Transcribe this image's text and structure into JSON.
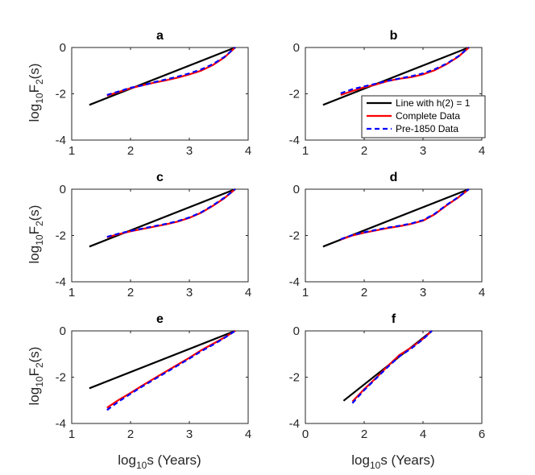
{
  "chart_data": {
    "type": "line",
    "legend": {
      "location": "panel b, bottom-right",
      "entries": [
        {
          "label": "Line with h(2) = 1",
          "color": "#000000",
          "style": "solid"
        },
        {
          "label": "Complete Data",
          "color": "#ff0000",
          "style": "solid"
        },
        {
          "label": "Pre-1850 Data",
          "color": "#0000ff",
          "style": "dashed"
        }
      ]
    },
    "ylabel": {
      "base": "log",
      "sub": "10",
      "rest": "F",
      "sub2": "2",
      "tail": "(s)"
    },
    "xlabel": {
      "base": "log",
      "sub": "10",
      "tail": "s (Years)"
    },
    "panels": [
      {
        "title": "a",
        "xlim": [
          1,
          4
        ],
        "ylim": [
          -4,
          0
        ],
        "xticks": [
          "1",
          "2",
          "3",
          "4"
        ],
        "yticks": [
          "0",
          "-2",
          "-4"
        ],
        "series": [
          {
            "name": "Line with h(2) = 1",
            "x": [
              1.3,
              3.78
            ],
            "y": [
              -2.48,
              0
            ]
          },
          {
            "name": "Complete Data",
            "x": [
              1.6,
              1.8,
              2.0,
              2.2,
              2.4,
              2.6,
              2.8,
              3.0,
              3.2,
              3.4,
              3.6,
              3.78
            ],
            "y": [
              -2.08,
              -1.92,
              -1.76,
              -1.64,
              -1.52,
              -1.42,
              -1.3,
              -1.16,
              -1.0,
              -0.76,
              -0.42,
              0
            ]
          },
          {
            "name": "Pre-1850 Data",
            "x": [
              1.6,
              1.8,
              2.0,
              2.2,
              2.4,
              2.6,
              2.8,
              3.0,
              3.2,
              3.4,
              3.6,
              3.78
            ],
            "y": [
              -2.05,
              -1.9,
              -1.74,
              -1.64,
              -1.5,
              -1.38,
              -1.26,
              -1.12,
              -0.95,
              -0.72,
              -0.4,
              0
            ]
          }
        ]
      },
      {
        "title": "b",
        "xlim": [
          1,
          4
        ],
        "ylim": [
          -4,
          0
        ],
        "xticks": [
          "1",
          "2",
          "3",
          "4"
        ],
        "yticks": [
          "0",
          "-2",
          "-4"
        ],
        "series": [
          {
            "name": "Line with h(2) = 1",
            "x": [
              1.3,
              3.78
            ],
            "y": [
              -2.48,
              0
            ]
          },
          {
            "name": "Complete Data",
            "x": [
              1.6,
              1.8,
              2.0,
              2.2,
              2.4,
              2.6,
              2.8,
              3.0,
              3.2,
              3.4,
              3.6,
              3.78
            ],
            "y": [
              -2.05,
              -1.88,
              -1.72,
              -1.6,
              -1.45,
              -1.35,
              -1.28,
              -1.16,
              -0.98,
              -0.72,
              -0.4,
              0
            ]
          },
          {
            "name": "Pre-1850 Data",
            "x": [
              1.6,
              1.8,
              2.0,
              2.2,
              2.4,
              2.6,
              2.8,
              3.0,
              3.2,
              3.4,
              3.6,
              3.78
            ],
            "y": [
              -1.98,
              -1.8,
              -1.68,
              -1.56,
              -1.44,
              -1.34,
              -1.24,
              -1.12,
              -0.94,
              -0.7,
              -0.38,
              0
            ]
          }
        ]
      },
      {
        "title": "c",
        "xlim": [
          1,
          4
        ],
        "ylim": [
          -4,
          0
        ],
        "xticks": [
          "1",
          "2",
          "3",
          "4"
        ],
        "yticks": [
          "0",
          "-2",
          "-4"
        ],
        "series": [
          {
            "name": "Line with h(2) = 1",
            "x": [
              1.3,
              3.78
            ],
            "y": [
              -2.48,
              0
            ]
          },
          {
            "name": "Complete Data",
            "x": [
              1.6,
              1.8,
              2.0,
              2.2,
              2.4,
              2.6,
              2.8,
              3.0,
              3.2,
              3.4,
              3.6,
              3.78
            ],
            "y": [
              -2.08,
              -1.94,
              -1.82,
              -1.72,
              -1.62,
              -1.52,
              -1.4,
              -1.24,
              -1.02,
              -0.72,
              -0.38,
              0
            ]
          },
          {
            "name": "Pre-1850 Data",
            "x": [
              1.6,
              1.8,
              2.0,
              2.2,
              2.4,
              2.6,
              2.8,
              3.0,
              3.2,
              3.4,
              3.6,
              3.78
            ],
            "y": [
              -2.06,
              -1.92,
              -1.8,
              -1.7,
              -1.6,
              -1.5,
              -1.38,
              -1.22,
              -1.0,
              -0.7,
              -0.36,
              0
            ]
          }
        ]
      },
      {
        "title": "d",
        "xlim": [
          1,
          4
        ],
        "ylim": [
          -4,
          0
        ],
        "xticks": [
          "1",
          "2",
          "3",
          "4"
        ],
        "yticks": [
          "0",
          "-2",
          "-4"
        ],
        "series": [
          {
            "name": "Line with h(2) = 1",
            "x": [
              1.3,
              3.78
            ],
            "y": [
              -2.48,
              0
            ]
          },
          {
            "name": "Complete Data",
            "x": [
              1.6,
              1.8,
              2.0,
              2.2,
              2.4,
              2.6,
              2.8,
              3.0,
              3.2,
              3.4,
              3.6,
              3.78
            ],
            "y": [
              -2.18,
              -2.0,
              -1.88,
              -1.78,
              -1.68,
              -1.6,
              -1.5,
              -1.36,
              -1.08,
              -0.7,
              -0.36,
              0
            ]
          },
          {
            "name": "Pre-1850 Data",
            "x": [
              1.6,
              1.8,
              2.0,
              2.2,
              2.4,
              2.6,
              2.8,
              3.0,
              3.2,
              3.4,
              3.6,
              3.78
            ],
            "y": [
              -2.16,
              -1.98,
              -1.86,
              -1.76,
              -1.66,
              -1.58,
              -1.48,
              -1.34,
              -1.06,
              -0.68,
              -0.34,
              0
            ]
          }
        ]
      },
      {
        "title": "e",
        "xlim": [
          1,
          4
        ],
        "ylim": [
          -4,
          0
        ],
        "xticks": [
          "1",
          "2",
          "3",
          "4"
        ],
        "yticks": [
          "0",
          "-2",
          "-4"
        ],
        "series": [
          {
            "name": "Line with h(2) = 1",
            "x": [
              1.3,
              3.78
            ],
            "y": [
              -2.48,
              0
            ]
          },
          {
            "name": "Complete Data",
            "x": [
              1.6,
              1.8,
              2.0,
              2.2,
              2.4,
              2.6,
              2.8,
              3.0,
              3.2,
              3.4,
              3.6,
              3.78
            ],
            "y": [
              -3.32,
              -2.98,
              -2.68,
              -2.36,
              -2.06,
              -1.76,
              -1.46,
              -1.16,
              -0.84,
              -0.56,
              -0.28,
              0
            ]
          },
          {
            "name": "Pre-1850 Data",
            "x": [
              1.6,
              1.8,
              2.0,
              2.2,
              2.4,
              2.6,
              2.8,
              3.0,
              3.2,
              3.4,
              3.6,
              3.78
            ],
            "y": [
              -3.42,
              -3.05,
              -2.72,
              -2.4,
              -2.1,
              -1.8,
              -1.5,
              -1.2,
              -0.88,
              -0.6,
              -0.3,
              0
            ]
          }
        ]
      },
      {
        "title": "f",
        "xlim": [
          0,
          6
        ],
        "ylim": [
          -4,
          0
        ],
        "xticks": [
          "0",
          "2",
          "4",
          "6"
        ],
        "yticks": [
          "0",
          "-2",
          "-4"
        ],
        "series": [
          {
            "name": "Line with h(2) = 1",
            "x": [
              1.3,
              4.3
            ],
            "y": [
              -3.02,
              0
            ]
          },
          {
            "name": "Complete Data",
            "x": [
              1.6,
              2.0,
              2.4,
              2.8,
              3.2,
              3.6,
              4.0,
              4.3
            ],
            "y": [
              -3.05,
              -2.52,
              -2.04,
              -1.52,
              -1.04,
              -0.72,
              -0.34,
              0
            ]
          },
          {
            "name": "Pre-1850 Data",
            "x": [
              1.6,
              2.0,
              2.4,
              2.8,
              3.2,
              3.6,
              4.0,
              4.3
            ],
            "y": [
              -3.12,
              -2.56,
              -2.06,
              -1.56,
              -1.1,
              -0.76,
              -0.36,
              0
            ]
          }
        ]
      }
    ]
  }
}
